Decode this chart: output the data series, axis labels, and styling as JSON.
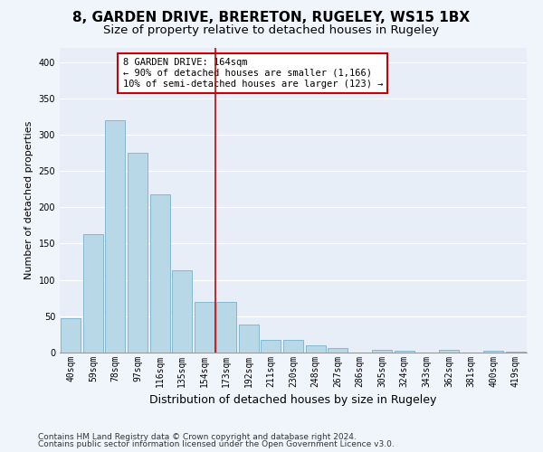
{
  "title1": "8, GARDEN DRIVE, BRERETON, RUGELEY, WS15 1BX",
  "title2": "Size of property relative to detached houses in Rugeley",
  "xlabel": "Distribution of detached houses by size in Rugeley",
  "ylabel": "Number of detached properties",
  "categories": [
    "40sqm",
    "59sqm",
    "78sqm",
    "97sqm",
    "116sqm",
    "135sqm",
    "154sqm",
    "173sqm",
    "192sqm",
    "211sqm",
    "230sqm",
    "248sqm",
    "267sqm",
    "286sqm",
    "305sqm",
    "324sqm",
    "343sqm",
    "362sqm",
    "381sqm",
    "400sqm",
    "419sqm"
  ],
  "values": [
    47,
    163,
    320,
    275,
    218,
    113,
    70,
    70,
    38,
    18,
    17,
    10,
    6,
    0,
    4,
    3,
    0,
    4,
    0,
    2,
    1
  ],
  "bar_color": "#b8d8e8",
  "bar_edge_color": "#7ab0cc",
  "vline_color": "#cc0000",
  "vline_index": 7,
  "annotation_line1": "8 GARDEN DRIVE: 164sqm",
  "annotation_line2": "← 90% of detached houses are smaller (1,166)",
  "annotation_line3": "10% of semi-detached houses are larger (123) →",
  "annotation_box_color": "#cc0000",
  "ylim": [
    0,
    420
  ],
  "yticks": [
    0,
    50,
    100,
    150,
    200,
    250,
    300,
    350,
    400
  ],
  "bg_color": "#e8eef8",
  "grid_color": "#ffffff",
  "fig_bg_color": "#f0f4fb",
  "footer1": "Contains HM Land Registry data © Crown copyright and database right 2024.",
  "footer2": "Contains public sector information licensed under the Open Government Licence v3.0.",
  "title1_fontsize": 11,
  "title2_fontsize": 9.5,
  "xlabel_fontsize": 9,
  "ylabel_fontsize": 8,
  "tick_fontsize": 7,
  "annot_fontsize": 7.5,
  "footer_fontsize": 6.5
}
